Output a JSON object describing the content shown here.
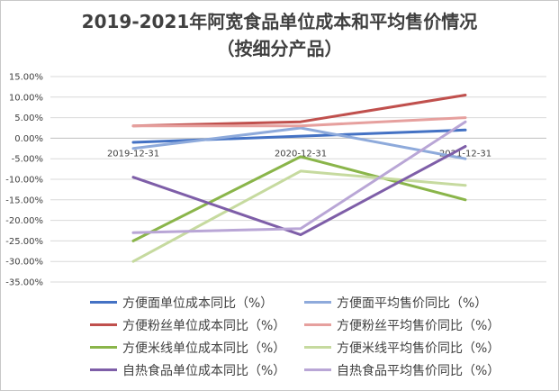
{
  "chart_data": {
    "type": "line",
    "title_line1": "2019-2021年阿宽食品单位成本和平均售价情况",
    "title_line2": "（按细分产品）",
    "categories": [
      "2019-12-31",
      "2020-12-31",
      "2021-12-31"
    ],
    "yticks": [
      "15.00%",
      "10.00%",
      "5.00%",
      "0.00%",
      "-5.00%",
      "-10.00%",
      "-15.00%",
      "-20.00%",
      "-25.00%",
      "-30.00%",
      "-35.00%"
    ],
    "ylim": [
      -35,
      15
    ],
    "grid": true,
    "legend_position": "bottom",
    "series": [
      {
        "name": "方便面单位成本同比（%）",
        "color": "#4472c4",
        "values": [
          -1.0,
          0.5,
          2.0
        ]
      },
      {
        "name": "方便面平均售价同比（%）",
        "color": "#8eaadb",
        "values": [
          -2.5,
          2.5,
          -5.0
        ]
      },
      {
        "name": "方便粉丝单位成本同比（%）",
        "color": "#c0504d",
        "values": [
          3.0,
          4.0,
          10.5
        ]
      },
      {
        "name": "方便粉丝平均售价同比（%）",
        "color": "#e6a09e",
        "values": [
          3.0,
          3.0,
          5.0
        ]
      },
      {
        "name": "方便米线单位成本同比（%）",
        "color": "#8ab54a",
        "values": [
          -25.0,
          -4.5,
          -15.0
        ]
      },
      {
        "name": "方便米线平均售价同比（%）",
        "color": "#c6da9f",
        "values": [
          -30.0,
          -8.0,
          -11.5
        ]
      },
      {
        "name": "自热食品单位成本同比（%）",
        "color": "#7e5ea8",
        "values": [
          -9.5,
          -23.5,
          -2.0
        ]
      },
      {
        "name": "自热食品平均售价同比（%）",
        "color": "#b9a6d6",
        "values": [
          -23.0,
          -22.0,
          4.0
        ]
      }
    ]
  }
}
